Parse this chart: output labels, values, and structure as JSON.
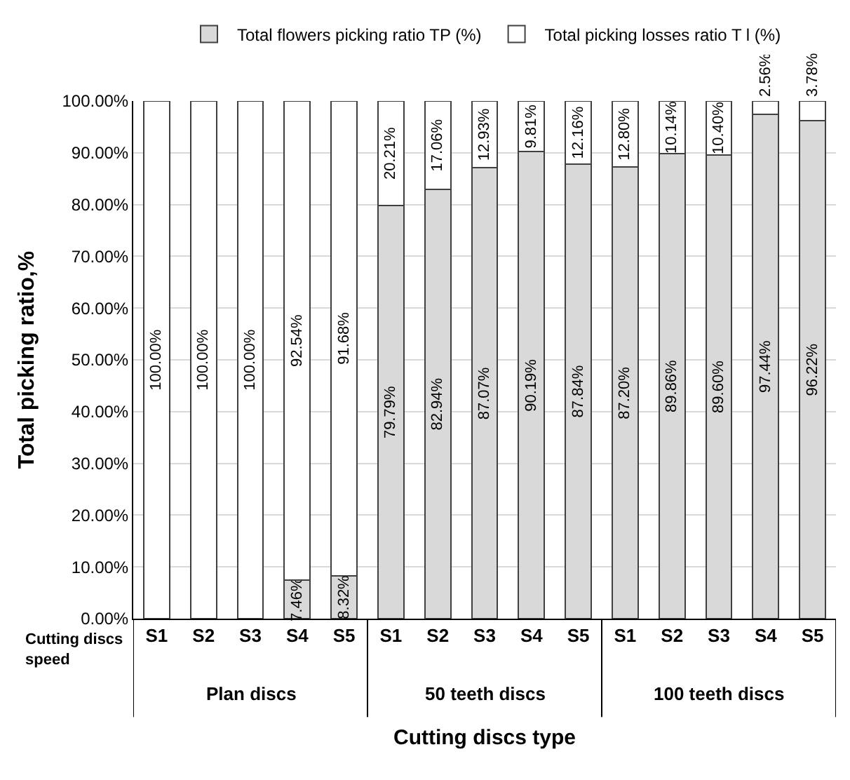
{
  "chart_data": {
    "type": "bar",
    "stacked": true,
    "xlabel": "Cutting discs type",
    "ylabel": "Total picking ratio,%",
    "categories": [
      "S1",
      "S2",
      "S3",
      "S4",
      "S5",
      "S1",
      "S2",
      "S3",
      "S4",
      "S5",
      "S1",
      "S2",
      "S3",
      "S4",
      "S5"
    ],
    "series": [
      {
        "name": "Total flowers picking ratio TP (%)",
        "color": "#d9d9d9",
        "values": [
          0,
          0,
          0,
          7.46,
          8.32,
          79.79,
          82.94,
          87.07,
          90.19,
          87.84,
          87.2,
          89.86,
          89.6,
          97.44,
          96.22
        ],
        "value_labels": [
          null,
          null,
          null,
          "7.46%",
          "8.32%",
          "79.79%",
          "82.94%",
          "87.07%",
          "90.19%",
          "87.84%",
          "87.20%",
          "89.86%",
          "89.60%",
          "97.44%",
          "96.22%"
        ]
      },
      {
        "name": "Total picking losses ratio T l (%)",
        "color": "#ffffff",
        "values": [
          100,
          100,
          100,
          92.54,
          91.68,
          20.21,
          17.06,
          12.93,
          9.81,
          12.16,
          12.8,
          10.14,
          10.4,
          2.56,
          3.78
        ],
        "value_labels": [
          "100.00%",
          "100.00%",
          "100.00%",
          "92.54%",
          "91.68%",
          "20.21%",
          "17.06%",
          "12.93%",
          "9.81%",
          "12.16%",
          "12.80%",
          "10.14%",
          "10.40%",
          "2.56%",
          "3.78%"
        ]
      }
    ],
    "annotations": [
      "Cutting discs speed",
      "Plan discs",
      "50 teeth discs",
      "100 teeth discs"
    ],
    "ylim": [
      0,
      100
    ],
    "yticks": [
      {
        "value": 0,
        "label": "0.00%"
      },
      {
        "value": 10,
        "label": "10.00%"
      },
      {
        "value": 20,
        "label": "20.00%"
      },
      {
        "value": 30,
        "label": "30.00%"
      },
      {
        "value": 40,
        "label": "40.00%"
      },
      {
        "value": 50,
        "label": "50.00%"
      },
      {
        "value": 60,
        "label": "60.00%"
      },
      {
        "value": 70,
        "label": "70.00%"
      },
      {
        "value": 80,
        "label": "80.00%"
      },
      {
        "value": 90,
        "label": "90.00%"
      },
      {
        "value": 100,
        "label": "100.00%"
      }
    ],
    "grid": "y",
    "legend": "top"
  }
}
